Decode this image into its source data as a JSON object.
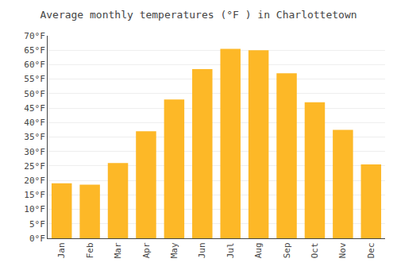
{
  "chart_data": {
    "type": "bar",
    "title": "Average monthly temperatures (°F ) in Charlottetown",
    "categories": [
      "Jan",
      "Feb",
      "Mar",
      "Apr",
      "May",
      "Jun",
      "Jul",
      "Aug",
      "Sep",
      "Oct",
      "Nov",
      "Dec"
    ],
    "values": [
      19,
      18.5,
      26,
      37,
      48,
      58.5,
      65.5,
      65,
      57,
      47,
      37.5,
      25.5
    ],
    "color": "#FDB827",
    "ylim": [
      0,
      70
    ],
    "yticks": [
      {
        "value": 0,
        "label": "0°F"
      },
      {
        "value": 5,
        "label": "5°F"
      },
      {
        "value": 10,
        "label": "10°F"
      },
      {
        "value": 15,
        "label": "15°F"
      },
      {
        "value": 20,
        "label": "20°F"
      },
      {
        "value": 25,
        "label": "25°F"
      },
      {
        "value": 30,
        "label": "30°F"
      },
      {
        "value": 35,
        "label": "35°F"
      },
      {
        "value": 40,
        "label": "40°F"
      },
      {
        "value": 45,
        "label": "45°F"
      },
      {
        "value": 50,
        "label": "50°F"
      },
      {
        "value": 55,
        "label": "55°F"
      },
      {
        "value": 60,
        "label": "60°F"
      },
      {
        "value": 65,
        "label": "65°F"
      },
      {
        "value": 70,
        "label": "70°F"
      }
    ],
    "grid": true
  }
}
